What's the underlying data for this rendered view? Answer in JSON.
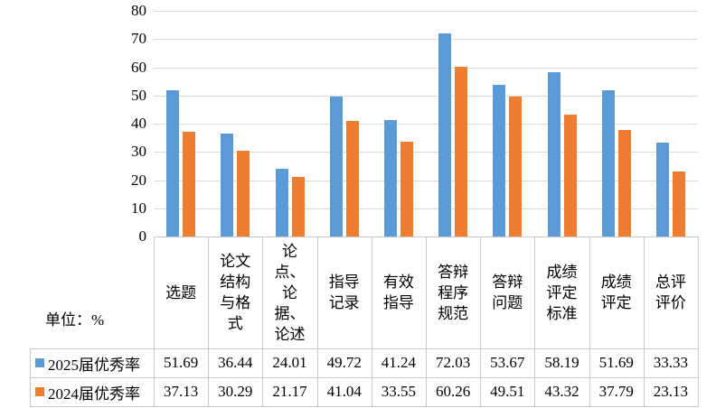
{
  "unit_label": "单位：%",
  "chart_data": {
    "type": "bar",
    "title": "",
    "categories": [
      "选题",
      "论文结构与格式",
      "论点、论据、论述",
      "指导记录",
      "有效指导",
      "答辩程序规范",
      "答辩问题",
      "成绩评定标准",
      "成绩评定",
      "总评评价"
    ],
    "categories_display": [
      "选题",
      "论文\n结构\n与格\n式",
      "论\n点、\n论\n据、\n论述",
      "指导\n记录",
      "有效\n指导",
      "答辩\n程序\n规范",
      "答辩\n问题",
      "成绩\n评定\n标准",
      "成绩\n评定",
      "总评\n评价"
    ],
    "series": [
      {
        "name": "2025届优秀率",
        "color": "#5B9BD5",
        "values": [
          51.69,
          36.44,
          24.01,
          49.72,
          41.24,
          72.03,
          53.67,
          58.19,
          51.69,
          33.33
        ]
      },
      {
        "name": "2024届优秀率",
        "color": "#ED7D31",
        "values": [
          37.13,
          30.29,
          21.17,
          41.04,
          33.55,
          60.26,
          49.51,
          43.32,
          37.79,
          23.13
        ]
      }
    ],
    "ylim": [
      0,
      80
    ],
    "yticks": [
      0,
      10,
      20,
      30,
      40,
      50,
      60,
      70,
      80
    ],
    "grid": true,
    "gridline_color": "#D9D9D9",
    "border_color": "#C9C9C9",
    "legend_position": "bottom-table",
    "value_decimals": 2
  }
}
